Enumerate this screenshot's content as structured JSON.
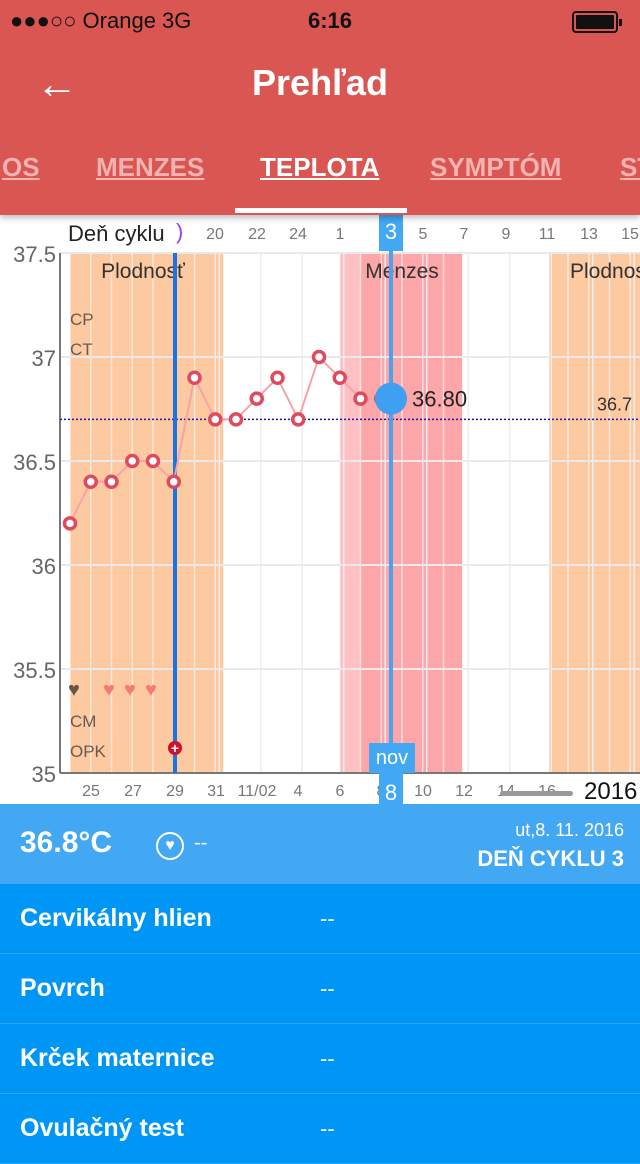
{
  "status": {
    "carrier": "●●●○○ Orange   3G",
    "time": "6:16"
  },
  "header": {
    "title": "Prehľad",
    "back_icon": "←"
  },
  "tabs": [
    {
      "label": "OS"
    },
    {
      "label": "MENZES"
    },
    {
      "label": "TEPLOTA",
      "active": true
    },
    {
      "label": "SYMPTÓM"
    },
    {
      "label": "ST"
    }
  ],
  "chart_data": {
    "type": "line",
    "ylim": [
      35,
      37.5
    ],
    "y_ticks": [
      "35",
      "35.5",
      "36",
      "36.5",
      "37",
      "37.5"
    ],
    "x_dates": [
      "10/24",
      "10/25",
      "10/26",
      "10/27",
      "10/28",
      "10/29",
      "10/30",
      "10/31",
      "11/01",
      "11/02",
      "11/03",
      "11/04",
      "11/05",
      "11/06",
      "11/07",
      "11/08"
    ],
    "values": [
      36.2,
      36.4,
      36.4,
      36.5,
      36.5,
      36.4,
      36.9,
      36.7,
      36.7,
      36.8,
      36.9,
      36.7,
      37.0,
      36.9,
      36.8,
      36.8
    ],
    "bottom_labels": [
      "25",
      "27",
      "29",
      "31",
      "11/02",
      "4",
      "6",
      "8",
      "10",
      "12",
      "14",
      "16"
    ],
    "top_label": "Deň cyklu",
    "cycle_labels": [
      "20",
      "22",
      "24",
      "1",
      "3",
      "5",
      "7",
      "9",
      "11",
      "13",
      "15"
    ],
    "coverline": 36.7,
    "coverline_label": "36.7",
    "selected_value_label": "36.80",
    "selected_cycle_day": "3",
    "selected_month": "nov",
    "selected_day": "8",
    "year": "2016",
    "bands": [
      {
        "label": "Plodnosť"
      },
      {
        "label": "Menzes"
      },
      {
        "label": "Plodnosť"
      }
    ],
    "row_labels": [
      "CP",
      "CT",
      "CM",
      "OPK"
    ]
  },
  "info": {
    "temperature": "36.8°C",
    "sex": "--",
    "date": "ut,8. 11. 2016",
    "cycle_day": "DEŇ CYKLU 3"
  },
  "details": [
    {
      "label": "Cervikálny hlien",
      "value": "--"
    },
    {
      "label": "Povrch",
      "value": "--"
    },
    {
      "label": "Krček maternice",
      "value": "--"
    },
    {
      "label": "Ovulačný test",
      "value": "--"
    }
  ]
}
